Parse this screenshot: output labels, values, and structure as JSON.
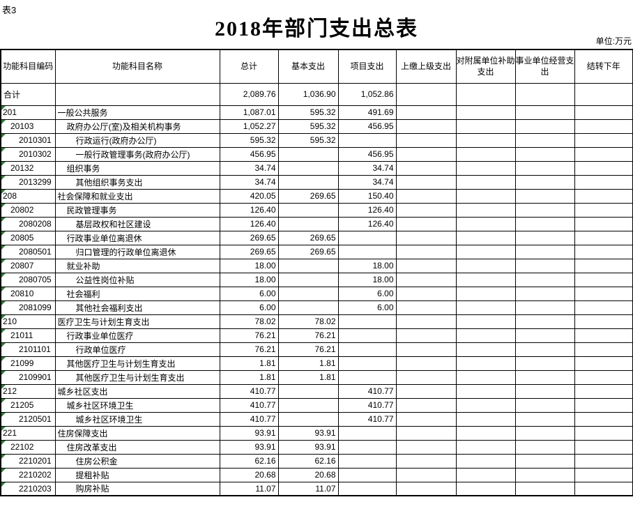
{
  "page": {
    "sheet_label": "表3",
    "title": "2018年部门支出总表",
    "unit_label": "单位:万元"
  },
  "table": {
    "columns": [
      "功能科目编码",
      "功能科目名称",
      "总计",
      "基本支出",
      "项目支出",
      "上缴上级支出",
      "对附属单位补助支出",
      "事业单位经营支出",
      "结转下年"
    ],
    "rows": [
      {
        "code": "合计",
        "name": "",
        "level": 0,
        "indicator": false,
        "values": [
          "2,089.76",
          "1,036.90",
          "1,052.86",
          "",
          "",
          "",
          ""
        ]
      },
      {
        "code": "201",
        "name": "一般公共服务",
        "level": 1,
        "indicator": true,
        "values": [
          "1,087.01",
          "595.32",
          "491.69",
          "",
          "",
          "",
          ""
        ]
      },
      {
        "code": "20103",
        "name": "政府办公厅(室)及相关机构事务",
        "level": 2,
        "indicator": true,
        "values": [
          "1,052.27",
          "595.32",
          "456.95",
          "",
          "",
          "",
          ""
        ]
      },
      {
        "code": "2010301",
        "name": "行政运行(政府办公厅)",
        "level": 3,
        "indicator": true,
        "values": [
          "595.32",
          "595.32",
          "",
          "",
          "",
          "",
          ""
        ]
      },
      {
        "code": "2010302",
        "name": "一般行政管理事务(政府办公厅)",
        "level": 3,
        "indicator": true,
        "values": [
          "456.95",
          "",
          "456.95",
          "",
          "",
          "",
          ""
        ]
      },
      {
        "code": "20132",
        "name": "组织事务",
        "level": 2,
        "indicator": true,
        "values": [
          "34.74",
          "",
          "34.74",
          "",
          "",
          "",
          ""
        ]
      },
      {
        "code": "2013299",
        "name": "其他组织事务支出",
        "level": 3,
        "indicator": true,
        "values": [
          "34.74",
          "",
          "34.74",
          "",
          "",
          "",
          ""
        ]
      },
      {
        "code": "208",
        "name": "社会保障和就业支出",
        "level": 1,
        "indicator": true,
        "values": [
          "420.05",
          "269.65",
          "150.40",
          "",
          "",
          "",
          ""
        ]
      },
      {
        "code": "20802",
        "name": "民政管理事务",
        "level": 2,
        "indicator": true,
        "values": [
          "126.40",
          "",
          "126.40",
          "",
          "",
          "",
          ""
        ]
      },
      {
        "code": "2080208",
        "name": "基层政权和社区建设",
        "level": 3,
        "indicator": true,
        "values": [
          "126.40",
          "",
          "126.40",
          "",
          "",
          "",
          ""
        ]
      },
      {
        "code": "20805",
        "name": "行政事业单位离退休",
        "level": 2,
        "indicator": true,
        "values": [
          "269.65",
          "269.65",
          "",
          "",
          "",
          "",
          ""
        ]
      },
      {
        "code": "2080501",
        "name": "归口管理的行政单位离退休",
        "level": 3,
        "indicator": true,
        "values": [
          "269.65",
          "269.65",
          "",
          "",
          "",
          "",
          ""
        ]
      },
      {
        "code": "20807",
        "name": "就业补助",
        "level": 2,
        "indicator": true,
        "values": [
          "18.00",
          "",
          "18.00",
          "",
          "",
          "",
          ""
        ]
      },
      {
        "code": "2080705",
        "name": "公益性岗位补贴",
        "level": 3,
        "indicator": true,
        "values": [
          "18.00",
          "",
          "18.00",
          "",
          "",
          "",
          ""
        ]
      },
      {
        "code": "20810",
        "name": "社会福利",
        "level": 2,
        "indicator": true,
        "values": [
          "6.00",
          "",
          "6.00",
          "",
          "",
          "",
          ""
        ]
      },
      {
        "code": "2081099",
        "name": "其他社会福利支出",
        "level": 3,
        "indicator": true,
        "values": [
          "6.00",
          "",
          "6.00",
          "",
          "",
          "",
          ""
        ]
      },
      {
        "code": "210",
        "name": "医疗卫生与计划生育支出",
        "level": 1,
        "indicator": true,
        "values": [
          "78.02",
          "78.02",
          "",
          "",
          "",
          "",
          ""
        ]
      },
      {
        "code": "21011",
        "name": "行政事业单位医疗",
        "level": 2,
        "indicator": true,
        "values": [
          "76.21",
          "76.21",
          "",
          "",
          "",
          "",
          ""
        ]
      },
      {
        "code": "2101101",
        "name": "行政单位医疗",
        "level": 3,
        "indicator": true,
        "values": [
          "76.21",
          "76.21",
          "",
          "",
          "",
          "",
          ""
        ]
      },
      {
        "code": "21099",
        "name": "其他医疗卫生与计划生育支出",
        "level": 2,
        "indicator": true,
        "values": [
          "1.81",
          "1.81",
          "",
          "",
          "",
          "",
          ""
        ]
      },
      {
        "code": "2109901",
        "name": "其他医疗卫生与计划生育支出",
        "level": 3,
        "indicator": true,
        "values": [
          "1.81",
          "1.81",
          "",
          "",
          "",
          "",
          ""
        ]
      },
      {
        "code": "212",
        "name": "城乡社区支出",
        "level": 1,
        "indicator": true,
        "values": [
          "410.77",
          "",
          "410.77",
          "",
          "",
          "",
          ""
        ]
      },
      {
        "code": "21205",
        "name": "城乡社区环境卫生",
        "level": 2,
        "indicator": true,
        "values": [
          "410.77",
          "",
          "410.77",
          "",
          "",
          "",
          ""
        ]
      },
      {
        "code": "2120501",
        "name": "城乡社区环境卫生",
        "level": 3,
        "indicator": true,
        "values": [
          "410.77",
          "",
          "410.77",
          "",
          "",
          "",
          ""
        ]
      },
      {
        "code": "221",
        "name": "住房保障支出",
        "level": 1,
        "indicator": true,
        "values": [
          "93.91",
          "93.91",
          "",
          "",
          "",
          "",
          ""
        ]
      },
      {
        "code": "22102",
        "name": "住房改革支出",
        "level": 2,
        "indicator": true,
        "values": [
          "93.91",
          "93.91",
          "",
          "",
          "",
          "",
          ""
        ]
      },
      {
        "code": "2210201",
        "name": "住房公积金",
        "level": 3,
        "indicator": true,
        "values": [
          "62.16",
          "62.16",
          "",
          "",
          "",
          "",
          ""
        ]
      },
      {
        "code": "2210202",
        "name": "提租补贴",
        "level": 3,
        "indicator": true,
        "values": [
          "20.68",
          "20.68",
          "",
          "",
          "",
          "",
          ""
        ]
      },
      {
        "code": "2210203",
        "name": "购房补贴",
        "level": 3,
        "indicator": true,
        "values": [
          "11.07",
          "11.07",
          "",
          "",
          "",
          "",
          ""
        ]
      }
    ]
  },
  "colors": {
    "text": "#000000",
    "border": "#000000",
    "indicator_green": "#2e7d32"
  }
}
